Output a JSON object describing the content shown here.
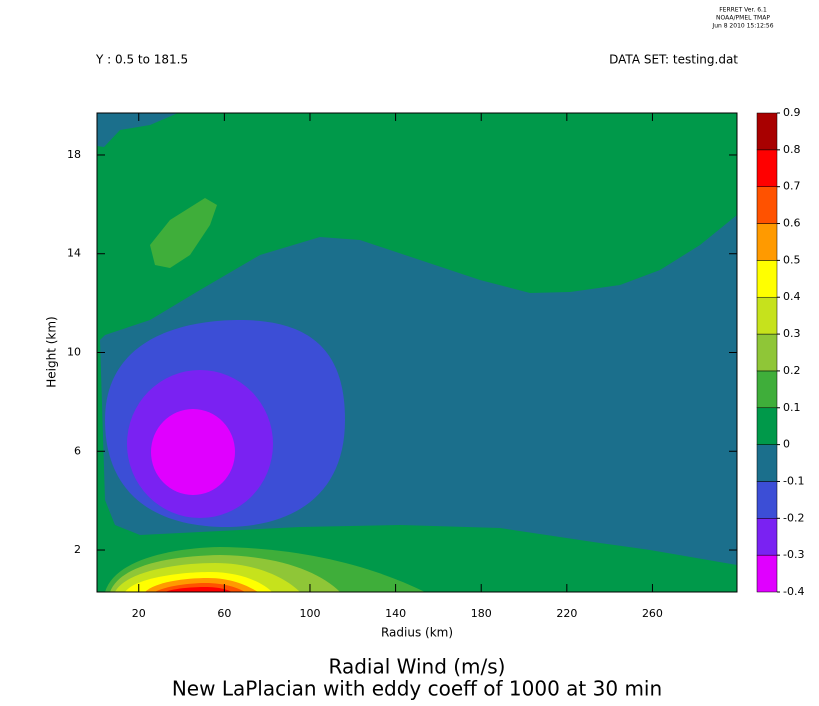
{
  "chart_data": {
    "type": "contour",
    "header": [
      "FERRET Ver. 6.1",
      "NOAA/PMEL TMAP",
      "Jun  8 2010 15:12:56"
    ],
    "subset": "Y : 0.5 to 181.5",
    "dataset": "DATA SET: testing.dat",
    "title": "Radial Wind (m/s)",
    "subtitle": "New LaPlacian with eddy coeff of 1000 at 30 min",
    "x_label": "Radius (km)",
    "y_label": "Height (km)",
    "xlim": [
      0.5,
      299.5
    ],
    "xticks": [
      20,
      60,
      100,
      140,
      180,
      220,
      260
    ],
    "ylim": [
      0.3,
      19.7
    ],
    "yticks": [
      2,
      6,
      10,
      14,
      18
    ],
    "levels": [
      -0.4,
      -0.3,
      -0.2,
      -0.1,
      0,
      0.1,
      0.2,
      0.3,
      0.4,
      0.5,
      0.6,
      0.7,
      0.8,
      0.9
    ],
    "colors": [
      "#e000ff",
      "#7a22f2",
      "#3c4ed6",
      "#1b6f8c",
      "#00994a",
      "#3fae3a",
      "#8fc637",
      "#c6e21c",
      "#ffff00",
      "#ff9a00",
      "#ff5200",
      "#ff0000",
      "#a80000"
    ]
  }
}
